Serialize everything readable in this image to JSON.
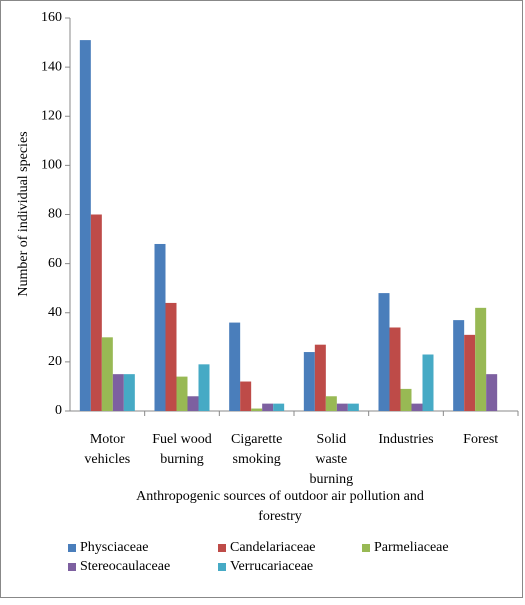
{
  "chart_data": {
    "type": "bar",
    "y_label": "Number of individual species",
    "x_label": "Anthropogenic sources of outdoor air pollution and\nforestry",
    "categories": [
      "Motor\nvehicles",
      "Fuel wood\nburning",
      "Cigarette\nsmoking",
      "Solid\nwaste\nburning",
      "Industries",
      "Forest"
    ],
    "series": [
      {
        "name": "Physciaceae",
        "color": "#4a7ebb",
        "values": [
          151,
          68,
          36,
          24,
          48,
          37
        ]
      },
      {
        "name": "Candelariaceae",
        "color": "#be4b48",
        "values": [
          80,
          44,
          12,
          27,
          34,
          31
        ]
      },
      {
        "name": "Parmeliaceae",
        "color": "#98b954",
        "values": [
          30,
          14,
          1,
          6,
          9,
          42
        ]
      },
      {
        "name": "Stereocaulaceae",
        "color": "#7d60a0",
        "values": [
          15,
          6,
          3,
          3,
          3,
          15
        ]
      },
      {
        "name": "Verrucariaceae",
        "color": "#46aac5",
        "values": [
          15,
          19,
          3,
          3,
          23,
          0
        ]
      }
    ],
    "ylim": [
      0,
      160
    ],
    "yticks": [
      0,
      20,
      40,
      60,
      80,
      100,
      120,
      140,
      160
    ],
    "grid": false
  }
}
